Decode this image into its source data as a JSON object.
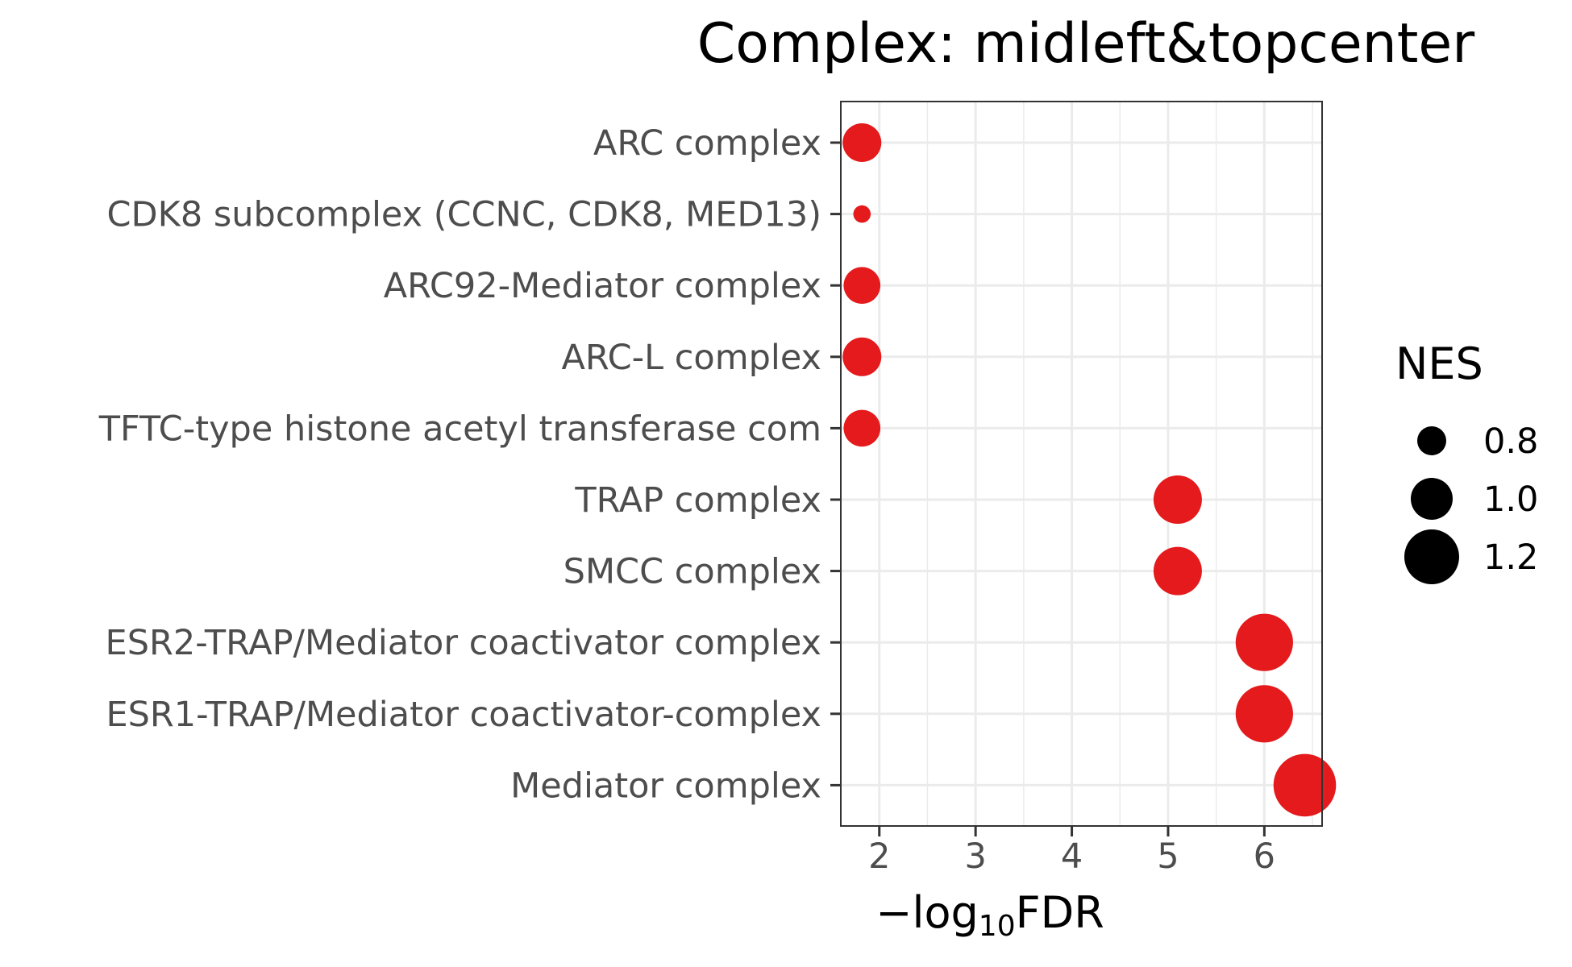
{
  "chart_data": {
    "type": "scatter",
    "title": "Complex: midleft&topcenter",
    "xlabel_prefix": "−log",
    "xlabel_subscript": "10",
    "xlabel_suffix": "FDR",
    "x_ticks": [
      2,
      3,
      4,
      5,
      6
    ],
    "xlim": [
      1.6,
      6.6
    ],
    "categories": [
      "ARC complex",
      "CDK8 subcomplex (CCNC, CDK8, MED13)",
      "ARC92-Mediator complex",
      "ARC-L complex",
      "TFTC-type histone acetyl transferase com",
      "TRAP complex",
      "SMCC complex",
      "ESR2-TRAP/Mediator coactivator complex",
      "ESR1-TRAP/Mediator coactivator-complex",
      "Mediator complex"
    ],
    "x": [
      1.82,
      1.82,
      1.82,
      1.82,
      1.82,
      5.1,
      5.1,
      6.0,
      6.0,
      6.42
    ],
    "nes": [
      0.95,
      0.62,
      0.92,
      0.95,
      0.92,
      1.1,
      1.1,
      1.24,
      1.24,
      1.32
    ],
    "point_color": "#e41a1c",
    "grid": true,
    "legend": {
      "title": "NES",
      "position": "right",
      "values": [
        0.8,
        1.0,
        1.2
      ],
      "labels": [
        "0.8",
        "1.0",
        "1.2"
      ]
    }
  }
}
